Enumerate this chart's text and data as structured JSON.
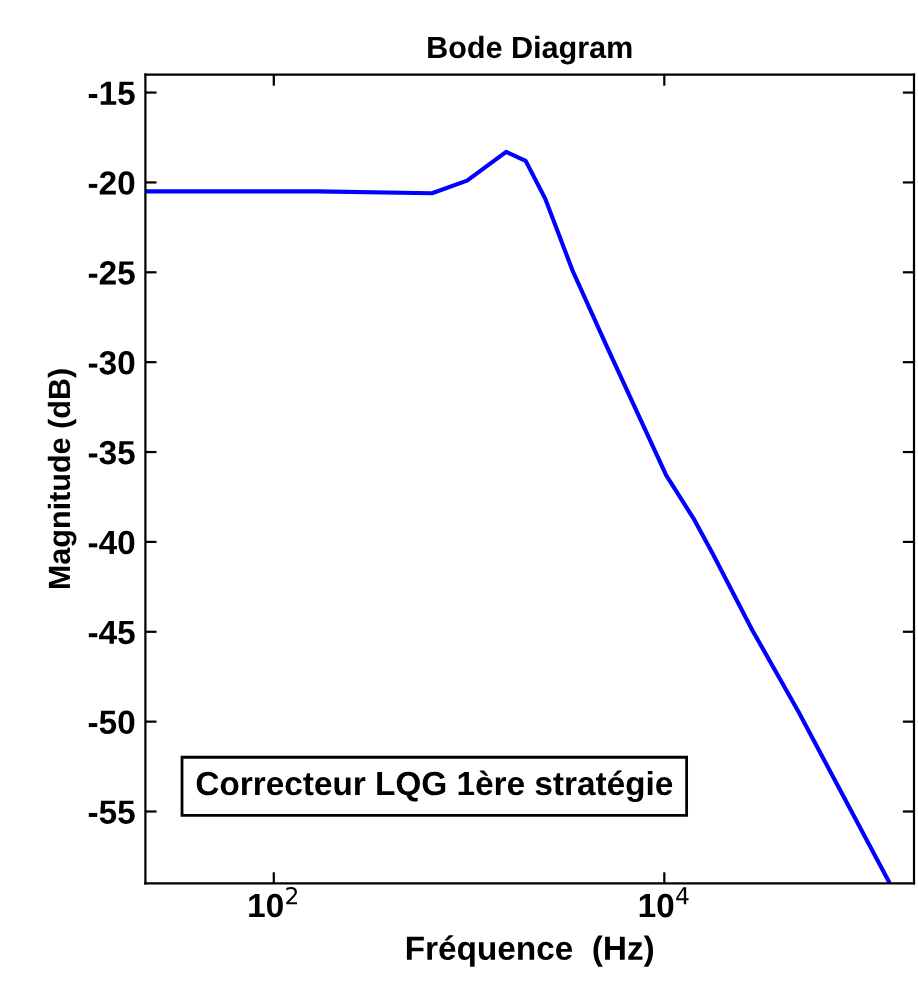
{
  "chart_data": {
    "type": "line",
    "title": "Bode Diagram",
    "xlabel": "Fréquence  (Hz)",
    "ylabel": "Magnitude (dB)",
    "annotations": [
      "Correcteur LQG 1ère stratégie"
    ],
    "x": [
      22,
      166,
      646,
      977,
      1549,
      1950,
      2455,
      3388,
      5012,
      10230,
      14125,
      17783,
      28184,
      48978,
      77625,
      141254
    ],
    "series": [
      {
        "color": "#0000ff",
        "values": [
          -20.5,
          -20.5,
          -20.6,
          -19.9,
          -18.3,
          -18.8,
          -20.9,
          -24.9,
          -29.0,
          -36.3,
          -38.7,
          -40.7,
          -44.9,
          -49.5,
          -53.6,
          -58.9
        ]
      }
    ],
    "log": "x",
    "xlim": [
      22,
      190000
    ],
    "ylim": [
      -59,
      -14
    ],
    "xticks": [
      {
        "value": 100,
        "label": "10$^{2}$"
      },
      {
        "value": 10000,
        "label": "10$^{4}$"
      }
    ],
    "yticks": [
      -55,
      -50,
      -45,
      -40,
      -35,
      -30,
      -25,
      -20,
      -15
    ],
    "grid": false,
    "legend": false,
    "marker": "none",
    "line_style": "solid"
  }
}
